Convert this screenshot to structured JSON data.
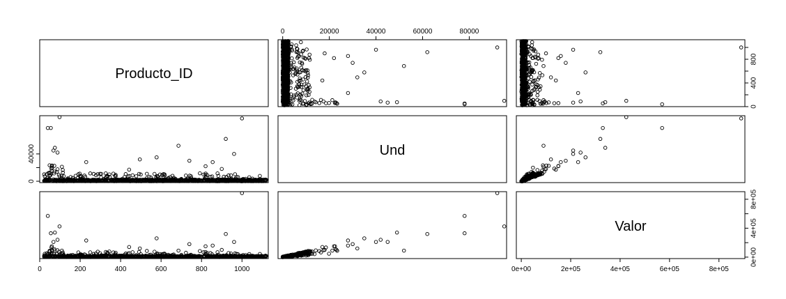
{
  "chart_data": {
    "type": "scatter",
    "title": "",
    "variables": [
      "Producto_ID",
      "Und",
      "Valor"
    ],
    "ranges": {
      "Producto_ID": [
        0,
        1130
      ],
      "Und": [
        -2000,
        96000
      ],
      "Valor": [
        -20000,
        905000
      ]
    },
    "tick_values": {
      "Producto_ID": [
        0,
        200,
        400,
        600,
        800,
        1000
      ],
      "Und": [
        0,
        20000,
        40000,
        60000,
        80000
      ],
      "Und_side": [
        0,
        40000
      ],
      "Valor": [
        0,
        200000,
        400000,
        600000,
        800000
      ]
    },
    "tick_labels": {
      "Producto_ID_bottom": [
        "0",
        "200",
        "400",
        "600",
        "800",
        "1000"
      ],
      "Producto_ID_right": [
        "0",
        "400",
        "800"
      ],
      "Und_top": [
        "0",
        "20000",
        "40000",
        "60000",
        "80000"
      ],
      "Und_left": [
        "0",
        "40000"
      ],
      "Valor_bottom": [
        "0e+00",
        "2e+05",
        "4e+05",
        "6e+05",
        "8e+05"
      ],
      "Valor_right": [
        "0e+00",
        "4e+05",
        "8e+05"
      ]
    },
    "right_tick_values": {
      "Producto_ID": [
        0,
        200,
        400,
        600,
        800,
        1000
      ],
      "Valor": [
        0,
        200000,
        400000,
        600000,
        800000
      ]
    },
    "notable_points": [
      {
        "Producto_ID": 98,
        "Und": 95000,
        "Valor": 425000
      },
      {
        "Producto_ID": 55,
        "Und": 78000,
        "Valor": 330000
      },
      {
        "Producto_ID": 40,
        "Und": 78000,
        "Valor": 570000
      },
      {
        "Producto_ID": 1000,
        "Und": 92000,
        "Valor": 890000
      },
      {
        "Producto_ID": 686,
        "Und": 52000,
        "Valor": 90000
      },
      {
        "Producto_ID": 920,
        "Und": 62000,
        "Valor": 320000
      },
      {
        "Producto_ID": 961,
        "Und": 40000,
        "Valor": 210000
      },
      {
        "Producto_ID": 578,
        "Und": 35000,
        "Valor": 260000
      },
      {
        "Producto_ID": 68,
        "Und": 45000,
        "Valor": 210000
      },
      {
        "Producto_ID": 88,
        "Und": 42000,
        "Valor": 240000
      },
      {
        "Producto_ID": 75,
        "Und": 49000,
        "Valor": 340000
      },
      {
        "Producto_ID": 230,
        "Und": 28000,
        "Valor": 230000
      },
      {
        "Producto_ID": 740,
        "Und": 30000,
        "Valor": 180000
      },
      {
        "Producto_ID": 495,
        "Und": 32000,
        "Valor": 120000
      },
      {
        "Producto_ID": 855,
        "Und": 28000,
        "Valor": 160000
      },
      {
        "Producto_ID": 442,
        "Und": 17000,
        "Valor": 140000
      },
      {
        "Producto_ID": 820,
        "Und": 22000,
        "Valor": 150000
      },
      {
        "Producto_ID": 900,
        "Und": 18000,
        "Valor": 100000
      }
    ]
  }
}
